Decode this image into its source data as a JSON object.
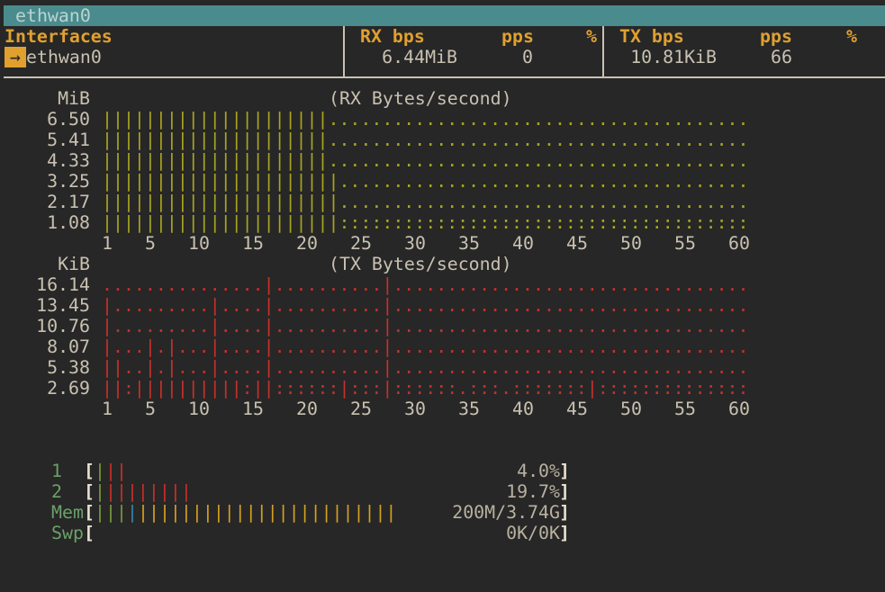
{
  "title_bar": "ethwan0",
  "table": {
    "headers": [
      "Interfaces",
      "RX bps",
      "pps",
      "%",
      "TX bps",
      "pps",
      "%"
    ],
    "row": {
      "marker": "→",
      "name": "ethwan0",
      "rx_bps": "6.44MiB",
      "rx_pps": 0,
      "tx_bps": "10.81KiB",
      "tx_pps": 66
    }
  },
  "graphs": [
    {
      "unit": "MiB",
      "title": "(RX Bytes/second)",
      "color": "#a9a51f",
      "y_labels": [
        "6.50",
        "5.41",
        "4.33",
        "3.25",
        "2.17",
        "1.08"
      ],
      "rows": [
        "|||||||||||||||||||||.......................................",
        "|||||||||||||||||||||.......................................",
        "|||||||||||||||||||||.......................................",
        "||||||||||||||||||||||......................................",
        "||||||||||||||||||||||......................................",
        "||||||||||||||||||||||::::::::::::::::::::::::::::::::::::::"
      ],
      "x_labels": [
        1,
        5,
        10,
        15,
        20,
        25,
        30,
        35,
        40,
        45,
        50,
        55,
        60
      ]
    },
    {
      "unit": "KiB",
      "title": "(TX Bytes/second)",
      "color": "#c8302a",
      "y_labels": [
        "16.14",
        "13.45",
        "10.76",
        "8.07",
        "5.38",
        "2.69"
      ],
      "rows": [
        "...............|..........|.................................",
        "|.........|....|..........|.................................",
        "|.........|....|..........|.................................",
        "|...|.|...|....|..........|.................................",
        "||..|.|...|....|..........|.................................",
        "||:||||||||||:||::::::|:::|::::::.:::.:::::::|::::::::::::::"
      ],
      "x_labels": [
        1,
        5,
        10,
        15,
        20,
        25,
        30,
        35,
        40,
        45,
        50,
        55,
        60
      ]
    }
  ],
  "meters": [
    {
      "label": "1",
      "bars": [
        {
          "text": "|",
          "color": "#7a9a3a"
        },
        {
          "text": "||",
          "color": "#c8302a"
        }
      ],
      "value": "4.0%"
    },
    {
      "label": "2",
      "bars": [
        {
          "text": "|",
          "color": "#7a9a3a"
        },
        {
          "text": "||||||||",
          "color": "#c8302a"
        }
      ],
      "value": "19.7%"
    },
    {
      "label": "Mem",
      "bars": [
        {
          "text": "|||",
          "color": "#7a9a3a"
        },
        {
          "text": "|",
          "color": "#3a82a8"
        },
        {
          "text": "||||||||||||||||||||||||",
          "color": "#d4a020"
        }
      ],
      "value": "200M/3.74G"
    },
    {
      "label": "Swp",
      "bars": [],
      "value": "0K/0K"
    }
  ]
}
